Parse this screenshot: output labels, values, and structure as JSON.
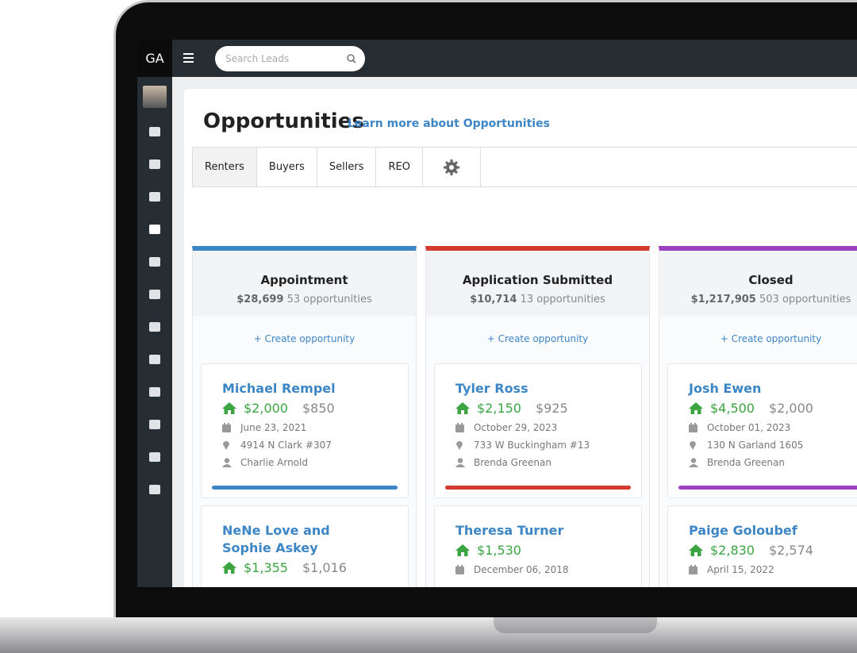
{
  "app": {
    "logo": "GA",
    "search_placeholder": "Search Leads"
  },
  "header": {
    "title": "Opportunities",
    "link": "Learn more about Opportunities"
  },
  "tabs": [
    "Renters",
    "Buyers",
    "Sellers",
    "REO"
  ],
  "columns": [
    {
      "title": "Appointment",
      "total": "$28,699",
      "count": "53 opportunities",
      "create": "+ Create opportunity",
      "color": "#3d86c6",
      "cards": [
        {
          "name": "Michael Rempel",
          "amount": "$2,000",
          "secondary": "$850",
          "date": "June 23, 2021",
          "address": "4914 N Clark #307",
          "agent": "Charlie Arnold"
        },
        {
          "name": "NeNe Love and Sophie Askey",
          "amount": "$1,355",
          "secondary": "$1,016"
        }
      ]
    },
    {
      "title": "Application Submitted",
      "total": "$10,714",
      "count": "13 opportunities",
      "create": "+ Create opportunity",
      "color": "#d2392f",
      "cards": [
        {
          "name": "Tyler Ross",
          "amount": "$2,150",
          "secondary": "$925",
          "date": "October 29, 2023",
          "address": "733 W Buckingham #13",
          "agent": "Brenda Greenan"
        },
        {
          "name": "Theresa Turner",
          "amount": "$1,530",
          "date": "December 06, 2018"
        }
      ]
    },
    {
      "title": "Closed",
      "total": "$1,217,905",
      "count": "503 opportunities",
      "create": "+ Create opportunity",
      "color": "#9b41c0",
      "cards": [
        {
          "name": "Josh Ewen",
          "amount": "$4,500",
          "secondary": "$2,000",
          "date": "October 01, 2023",
          "address": "130 N Garland 1605",
          "agent": "Brenda Greenan"
        },
        {
          "name": "Paige Goloubef",
          "amount": "$2,830",
          "secondary": "$2,574",
          "date": "April 15, 2022"
        }
      ]
    }
  ]
}
